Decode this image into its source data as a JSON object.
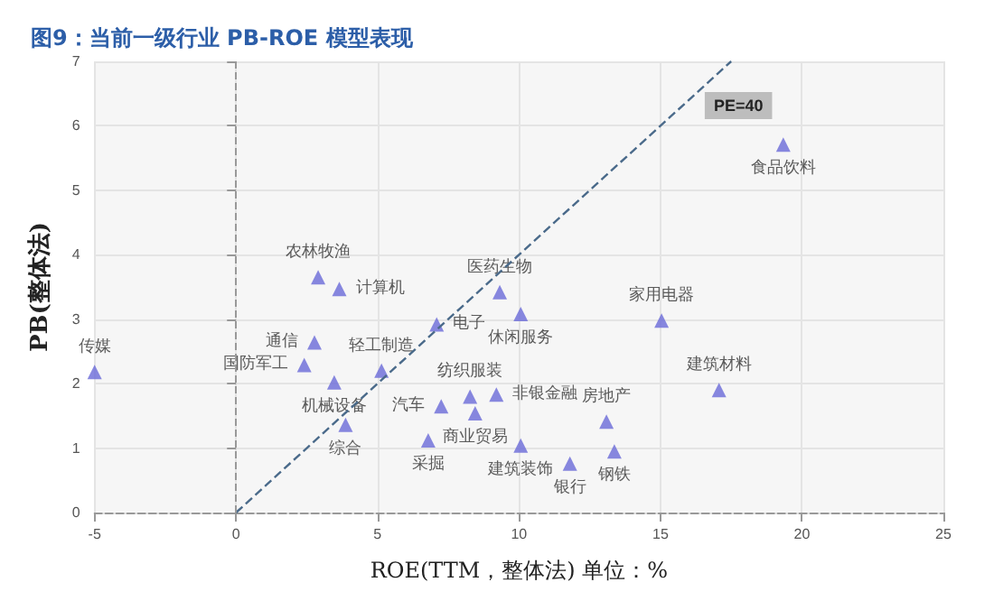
{
  "chart_data": {
    "type": "scatter",
    "title": "图9：当前一级行业 PB-ROE 模型表现",
    "xlabel": "ROE(TTM，整体法) 单位：%",
    "ylabel": "PB(整体法)",
    "xlim": [
      -5,
      25
    ],
    "xticks": [
      -5,
      0,
      5,
      10,
      15,
      20,
      25
    ],
    "ylim": [
      0,
      7
    ],
    "yticks": [
      0,
      1,
      2,
      3,
      4,
      5,
      6,
      7
    ],
    "grid": true,
    "legend": false,
    "ref_lines": [
      {
        "axis": "x",
        "value": 0,
        "color": "#999999",
        "line_style": "dashed"
      }
    ],
    "marker": "triangle",
    "series": [
      {
        "color": "#6a6ad8",
        "x": [
          -5,
          2.9,
          3.65,
          2.77,
          2.41,
          3.47,
          3.87,
          5.14,
          7.09,
          9.32,
          7.25,
          8.27,
          9.2,
          8.45,
          6.79,
          10.06,
          15.04,
          17.07,
          13.09,
          10.06,
          11.8,
          13.37,
          19.34
        ],
        "values": [
          2.18,
          3.65,
          3.47,
          2.64,
          2.29,
          2.02,
          1.36,
          2.2,
          2.92,
          3.42,
          1.65,
          1.8,
          1.83,
          1.54,
          1.12,
          3.08,
          2.98,
          1.9,
          1.41,
          1.04,
          0.76,
          0.95,
          5.71
        ],
        "value_labels": [
          "传媒",
          "农林牧渔",
          "计算机",
          "通信",
          "国防军工",
          "机械设备",
          "综合",
          "轻工制造",
          "电子",
          "医药生物",
          "汽车",
          "纺织服装",
          "非银金融",
          "商业贸易",
          "采掘",
          "休闲服务",
          "家用电器",
          "建筑材料",
          "房地产",
          "建筑装饰",
          "银行",
          "钢铁",
          "食品饮料"
        ]
      },
      {
        "type": "line",
        "name": "PE=40",
        "color": "#4a6a8a",
        "line_style": "dashed",
        "marker": "none",
        "x": [
          0,
          17.5
        ],
        "values": [
          0,
          7
        ]
      }
    ]
  }
}
